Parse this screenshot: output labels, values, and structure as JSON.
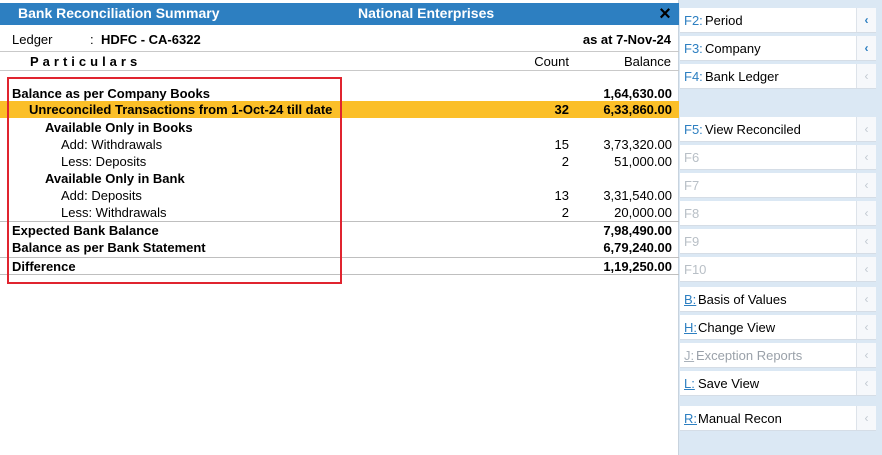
{
  "window": {
    "title": "Bank Reconciliation Summary",
    "company": "National Enterprises",
    "close_icon": "×"
  },
  "ledger": {
    "label": "Ledger",
    "colon": ":",
    "value": "HDFC - CA-6322",
    "as_at": "as at 7-Nov-24"
  },
  "columns": {
    "particulars": "Particulars",
    "count": "Count",
    "balance": "Balance"
  },
  "rows": [
    {
      "label": "Balance as per Company Books",
      "count": "",
      "balance": "1,64,630.00"
    },
    {
      "label": "Unreconciled Transactions from 1-Oct-24 till date",
      "count": "32",
      "balance": "6,33,860.00"
    },
    {
      "label": "Available Only in Books",
      "count": "",
      "balance": ""
    },
    {
      "label": "Add: Withdrawals",
      "count": "15",
      "balance": "3,73,320.00"
    },
    {
      "label": "Less: Deposits",
      "count": "2",
      "balance": "51,000.00"
    },
    {
      "label": "Available Only in Bank",
      "count": "",
      "balance": ""
    },
    {
      "label": "Add: Deposits",
      "count": "13",
      "balance": "3,31,540.00"
    },
    {
      "label": "Less: Withdrawals",
      "count": "2",
      "balance": "20,000.00"
    },
    {
      "label": "Expected Bank Balance",
      "count": "",
      "balance": "7,98,490.00"
    },
    {
      "label": "Balance as per Bank Statement",
      "count": "",
      "balance": "6,79,240.00"
    },
    {
      "label": "Difference",
      "count": "",
      "balance": "1,19,250.00"
    }
  ],
  "sidebar": {
    "chevron": "‹",
    "buttons": [
      {
        "key": "F2:",
        "name": "Period"
      },
      {
        "key": "F3:",
        "name": "Company"
      },
      {
        "key": "F4:",
        "name": "Bank Ledger"
      },
      {
        "key": "F5:",
        "name": "View Reconciled"
      },
      {
        "key": "F6",
        "name": ""
      },
      {
        "key": "F7",
        "name": ""
      },
      {
        "key": "F8",
        "name": ""
      },
      {
        "key": "F9",
        "name": ""
      },
      {
        "key": "F10",
        "name": ""
      },
      {
        "key": "B:",
        "name": "Basis of Values"
      },
      {
        "key": "H:",
        "name": "Change View"
      },
      {
        "key": "J:",
        "name": "Exception Reports"
      },
      {
        "key": "L:",
        "name": "Save View"
      },
      {
        "key": "R:",
        "name": "Manual Recon"
      }
    ]
  },
  "colors": {
    "title_bar": "#2d7fc1",
    "highlight_row": "#fbbf28",
    "annotation_box": "#e0242f",
    "sidebar_bg": "#dbe8f4"
  }
}
